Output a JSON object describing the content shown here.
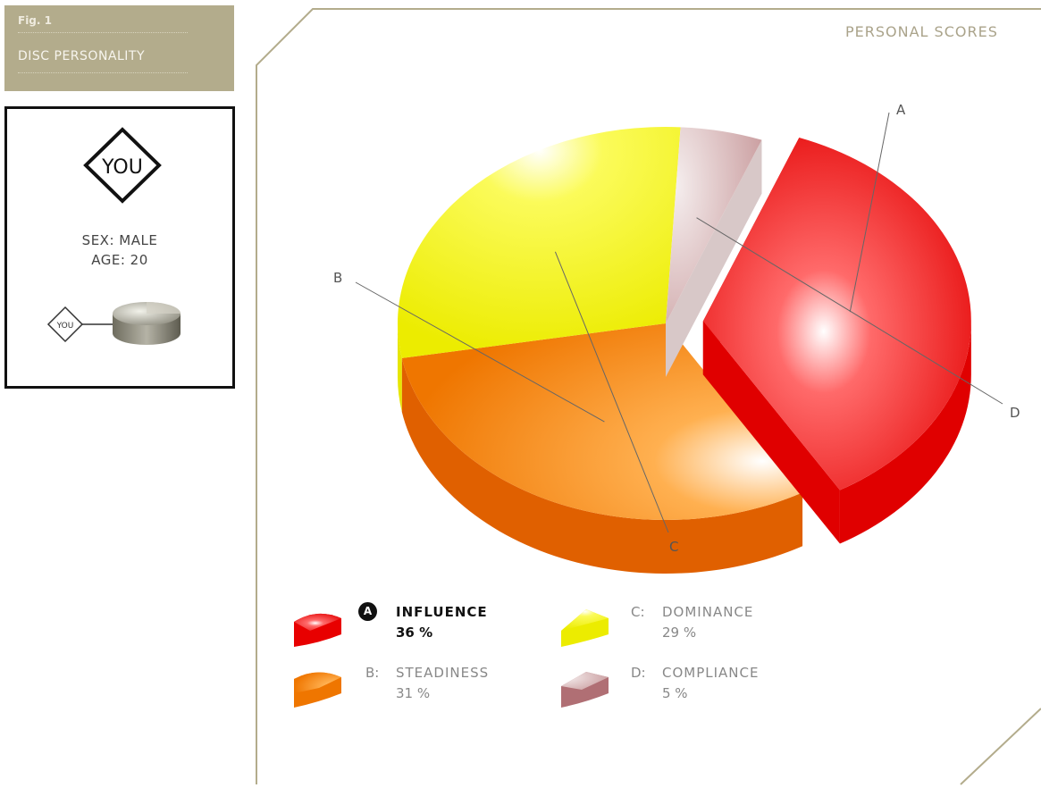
{
  "figure": {
    "number": "Fig. 1",
    "title": "DISC PERSONALITY"
  },
  "profile": {
    "you_label": "YOU",
    "sex": "SEX: MALE",
    "age": "AGE: 20",
    "mini_you_label": "YOU"
  },
  "panel_title": "PERSONAL SCORES",
  "chart_data": {
    "type": "pie",
    "title": "PERSONAL SCORES",
    "slices": [
      {
        "key": "A",
        "name": "INFLUENCE",
        "value": 36,
        "value_label": "36 %",
        "color": "#e80000",
        "exploded": true,
        "legend_prefix": ""
      },
      {
        "key": "B",
        "name": "STEADINESS",
        "value": 31,
        "value_label": "31 %",
        "color": "#f07a00",
        "exploded": false,
        "legend_prefix": "B:"
      },
      {
        "key": "C",
        "name": "DOMINANCE",
        "value": 29,
        "value_label": "29 %",
        "color": "#eeee00",
        "exploded": false,
        "legend_prefix": "C:"
      },
      {
        "key": "D",
        "name": "COMPLIANCE",
        "value": 5,
        "value_label": "5 %",
        "color": "#c08a8e",
        "exploded": false,
        "legend_prefix": "D:"
      }
    ],
    "highlighted": "A"
  }
}
